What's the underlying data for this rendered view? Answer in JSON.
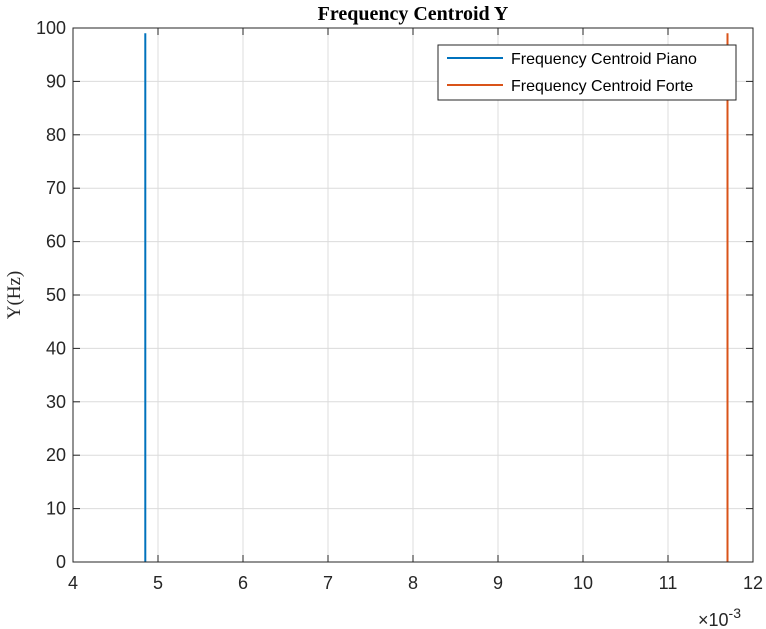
{
  "chart_data": {
    "type": "line",
    "title": "Frequency Centroid Y",
    "xlabel": "",
    "ylabel": "Y(Hz)",
    "xlim": [
      0.004,
      0.012
    ],
    "ylim": [
      0,
      100
    ],
    "x_ticks": [
      0.004,
      0.005,
      0.006,
      0.007,
      0.008,
      0.009,
      0.01,
      0.011,
      0.012
    ],
    "x_tick_labels": [
      "4",
      "5",
      "6",
      "7",
      "8",
      "9",
      "10",
      "11",
      "12"
    ],
    "x_exponent_label": "×10",
    "x_exponent_power": "-3",
    "y_ticks": [
      0,
      10,
      20,
      30,
      40,
      50,
      60,
      70,
      80,
      90,
      100
    ],
    "y_tick_labels": [
      "0",
      "10",
      "20",
      "30",
      "40",
      "50",
      "60",
      "70",
      "80",
      "90",
      "100"
    ],
    "grid": true,
    "legend_position": "top-right",
    "series": [
      {
        "name": "Frequency Centroid Piano",
        "color": "#0072BD",
        "x": [
          0.00485,
          0.00485
        ],
        "y": [
          0,
          99
        ]
      },
      {
        "name": "Frequency Centroid Forte",
        "color": "#D95319",
        "x": [
          0.0117,
          0.0117
        ],
        "y": [
          0,
          99
        ]
      }
    ]
  }
}
